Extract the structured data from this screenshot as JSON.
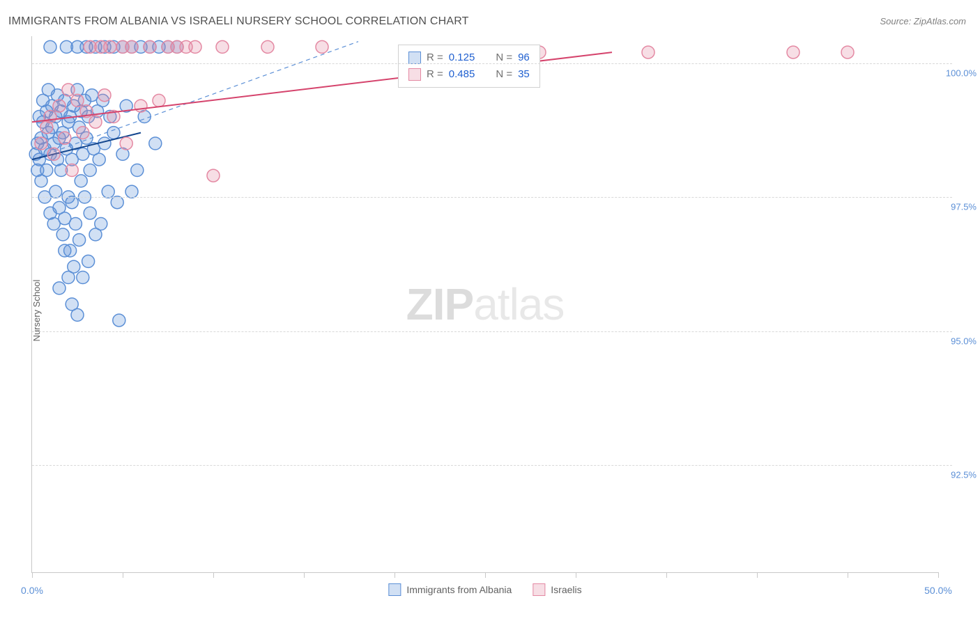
{
  "title": "IMMIGRANTS FROM ALBANIA VS ISRAELI NURSERY SCHOOL CORRELATION CHART",
  "source_label": "Source: ZipAtlas.com",
  "watermark_bold": "ZIP",
  "watermark_rest": "atlas",
  "yaxis_title": "Nursery School",
  "correlation_chart": {
    "type": "scatter",
    "xlim": [
      0,
      50
    ],
    "ylim": [
      90.5,
      100.5
    ],
    "x_axis_pct": true,
    "y_axis_pct": true,
    "xtick_labels": [
      {
        "v": 0,
        "label": "0.0%"
      },
      {
        "v": 50,
        "label": "50.0%"
      }
    ],
    "xtick_positions": [
      0,
      5,
      10,
      15,
      20,
      25,
      30,
      35,
      40,
      45,
      50
    ],
    "ytick_labels": [
      {
        "v": 92.5,
        "label": "92.5%"
      },
      {
        "v": 95.0,
        "label": "95.0%"
      },
      {
        "v": 97.5,
        "label": "97.5%"
      },
      {
        "v": 100.0,
        "label": "100.0%"
      }
    ],
    "grid_color": "#d8d8d8",
    "background_color": "#ffffff",
    "marker_radius": 9,
    "marker_stroke_width": 1.5,
    "marker_fill_opacity": 0.28,
    "series": [
      {
        "id": "albania",
        "label": "Immigrants from Albania",
        "color_stroke": "#5b8fd6",
        "color_fill": "#5b8fd6",
        "R": 0.125,
        "N": 96,
        "trend_solid": {
          "x1": 0,
          "y1": 98.2,
          "x2": 6,
          "y2": 98.7,
          "color": "#13468e",
          "width": 2
        },
        "trend_dashed": {
          "x1": 0,
          "y1": 98.2,
          "x2": 18,
          "y2": 100.4,
          "color": "#5b8fd6",
          "width": 1.2,
          "dash": "6,5"
        },
        "points": [
          [
            0.2,
            98.3
          ],
          [
            0.3,
            98.0
          ],
          [
            0.3,
            98.5
          ],
          [
            0.4,
            98.2
          ],
          [
            0.4,
            99.0
          ],
          [
            0.5,
            97.8
          ],
          [
            0.5,
            98.6
          ],
          [
            0.6,
            98.9
          ],
          [
            0.6,
            99.3
          ],
          [
            0.7,
            97.5
          ],
          [
            0.7,
            98.4
          ],
          [
            0.8,
            98.0
          ],
          [
            0.8,
            99.1
          ],
          [
            0.9,
            98.7
          ],
          [
            0.9,
            99.5
          ],
          [
            1.0,
            97.2
          ],
          [
            1.0,
            98.3
          ],
          [
            1.0,
            100.3
          ],
          [
            1.1,
            98.8
          ],
          [
            1.1,
            99.2
          ],
          [
            1.2,
            97.0
          ],
          [
            1.2,
            98.5
          ],
          [
            1.3,
            99.0
          ],
          [
            1.3,
            97.6
          ],
          [
            1.4,
            98.2
          ],
          [
            1.4,
            99.4
          ],
          [
            1.5,
            98.6
          ],
          [
            1.5,
            97.3
          ],
          [
            1.6,
            99.1
          ],
          [
            1.6,
            98.0
          ],
          [
            1.7,
            96.8
          ],
          [
            1.7,
            98.7
          ],
          [
            1.8,
            99.3
          ],
          [
            1.8,
            97.1
          ],
          [
            1.9,
            98.4
          ],
          [
            1.9,
            100.3
          ],
          [
            2.0,
            97.5
          ],
          [
            2.0,
            98.9
          ],
          [
            2.1,
            96.5
          ],
          [
            2.1,
            99.0
          ],
          [
            2.2,
            98.2
          ],
          [
            2.2,
            97.4
          ],
          [
            2.3,
            99.2
          ],
          [
            2.3,
            96.2
          ],
          [
            2.4,
            98.5
          ],
          [
            2.4,
            97.0
          ],
          [
            2.5,
            99.5
          ],
          [
            2.5,
            100.3
          ],
          [
            2.6,
            98.8
          ],
          [
            2.6,
            96.7
          ],
          [
            2.7,
            97.8
          ],
          [
            2.7,
            99.1
          ],
          [
            2.8,
            98.3
          ],
          [
            2.8,
            96.0
          ],
          [
            2.9,
            99.3
          ],
          [
            2.9,
            97.5
          ],
          [
            3.0,
            98.6
          ],
          [
            3.0,
            100.3
          ],
          [
            3.1,
            96.3
          ],
          [
            3.1,
            99.0
          ],
          [
            3.2,
            98.0
          ],
          [
            3.2,
            97.2
          ],
          [
            3.3,
            99.4
          ],
          [
            3.4,
            98.4
          ],
          [
            3.5,
            96.8
          ],
          [
            3.5,
            100.3
          ],
          [
            3.6,
            99.1
          ],
          [
            3.7,
            98.2
          ],
          [
            3.8,
            97.0
          ],
          [
            3.9,
            99.3
          ],
          [
            4.0,
            98.5
          ],
          [
            4.0,
            100.3
          ],
          [
            4.2,
            97.6
          ],
          [
            4.3,
            99.0
          ],
          [
            4.5,
            98.7
          ],
          [
            4.5,
            100.3
          ],
          [
            4.7,
            97.4
          ],
          [
            4.8,
            95.2
          ],
          [
            5.0,
            100.3
          ],
          [
            5.0,
            98.3
          ],
          [
            5.2,
            99.2
          ],
          [
            5.5,
            100.3
          ],
          [
            5.5,
            97.6
          ],
          [
            5.8,
            98.0
          ],
          [
            6.0,
            100.3
          ],
          [
            6.2,
            99.0
          ],
          [
            6.5,
            100.3
          ],
          [
            6.8,
            98.5
          ],
          [
            7.0,
            100.3
          ],
          [
            7.5,
            100.3
          ],
          [
            8.0,
            100.3
          ],
          [
            1.5,
            95.8
          ],
          [
            2.0,
            96.0
          ],
          [
            2.2,
            95.5
          ],
          [
            1.8,
            96.5
          ],
          [
            2.5,
            95.3
          ]
        ]
      },
      {
        "id": "israelis",
        "label": "Israelis",
        "color_stroke": "#e489a3",
        "color_fill": "#e489a3",
        "R": 0.485,
        "N": 35,
        "trend_solid": {
          "x1": 0,
          "y1": 98.9,
          "x2": 32,
          "y2": 100.2,
          "color": "#d5436c",
          "width": 2
        },
        "trend_dashed": null,
        "points": [
          [
            0.5,
            98.5
          ],
          [
            0.8,
            98.8
          ],
          [
            1.0,
            99.0
          ],
          [
            1.2,
            98.3
          ],
          [
            1.5,
            99.2
          ],
          [
            1.8,
            98.6
          ],
          [
            2.0,
            99.5
          ],
          [
            2.2,
            98.0
          ],
          [
            2.5,
            99.3
          ],
          [
            2.8,
            98.7
          ],
          [
            3.0,
            99.1
          ],
          [
            3.2,
            100.3
          ],
          [
            3.5,
            98.9
          ],
          [
            3.8,
            100.3
          ],
          [
            4.0,
            99.4
          ],
          [
            4.3,
            100.3
          ],
          [
            4.5,
            99.0
          ],
          [
            5.0,
            100.3
          ],
          [
            5.2,
            98.5
          ],
          [
            5.5,
            100.3
          ],
          [
            6.0,
            99.2
          ],
          [
            6.5,
            100.3
          ],
          [
            7.0,
            99.3
          ],
          [
            7.5,
            100.3
          ],
          [
            8.0,
            100.3
          ],
          [
            8.5,
            100.3
          ],
          [
            9.0,
            100.3
          ],
          [
            10.0,
            97.9
          ],
          [
            10.5,
            100.3
          ],
          [
            13.0,
            100.3
          ],
          [
            16.0,
            100.3
          ],
          [
            28.0,
            100.2
          ],
          [
            34.0,
            100.2
          ],
          [
            42.0,
            100.2
          ],
          [
            45.0,
            100.2
          ]
        ]
      }
    ]
  },
  "legend_box": {
    "r_label": "R = ",
    "n_label": "N = "
  }
}
